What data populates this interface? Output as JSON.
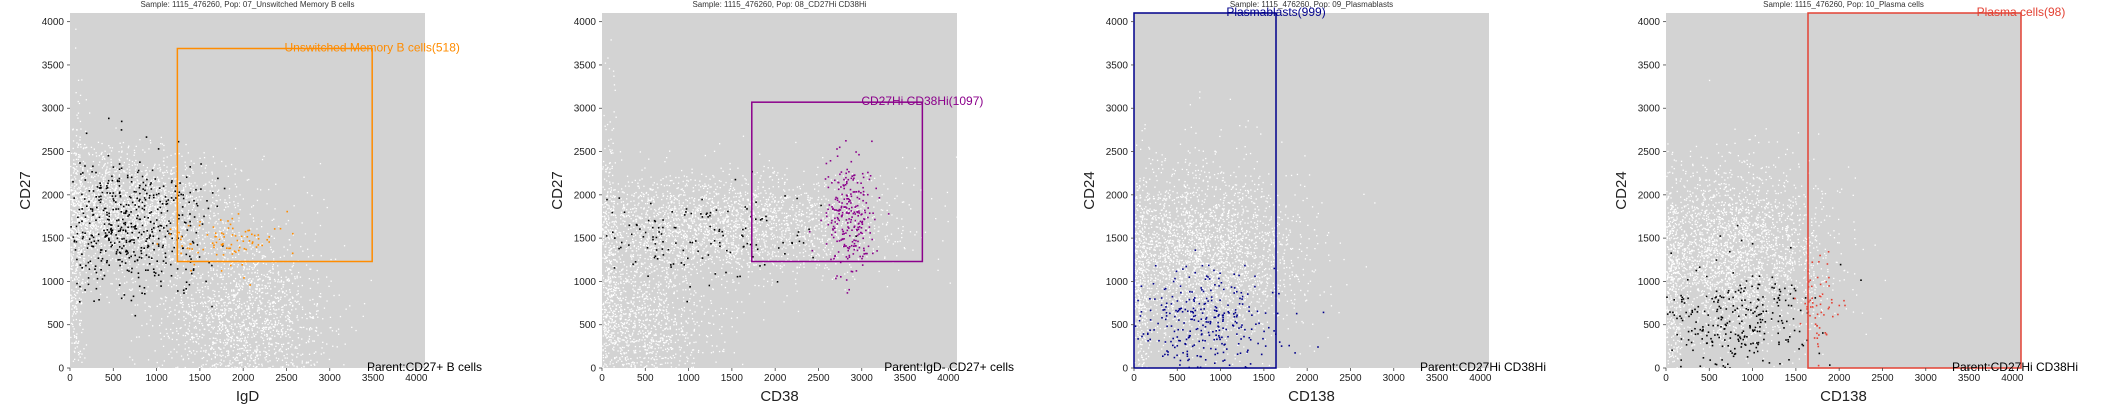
{
  "chart_data": [
    {
      "type": "scatter",
      "title": "Sample: 1115_476260, Pop: 07_Unswitched Memory B cells",
      "xlabel": "IgD",
      "ylabel": "CD27",
      "xlim": [
        0,
        4100
      ],
      "ylim": [
        0,
        4100
      ],
      "xticks": [
        "0",
        "500",
        "1000",
        "1500",
        "2000",
        "2500",
        "3000",
        "3500",
        "4000"
      ],
      "yticks": [
        "0",
        "500",
        "1000",
        "1500",
        "2000",
        "2500",
        "3000",
        "3500",
        "4000"
      ],
      "parent_label": "Parent:CD27+ B cells",
      "gate": {
        "label": "Unswitched Memory B cells(518)",
        "x": [
          1240,
          3490
        ],
        "y": [
          1230,
          3690
        ],
        "color": "#ff8c00"
      },
      "series": [
        {
          "role": "background",
          "color": "#ffffff",
          "clusters": [
            [
              500,
              1800,
              700,
              350,
              2600
            ],
            [
              2000,
              500,
              500,
              500,
              1800
            ],
            [
              60,
              1200,
              60,
              900,
              400
            ]
          ]
        },
        {
          "role": "parent",
          "color": "#000000",
          "clusters": [
            [
              650,
              1650,
              450,
              350,
              520
            ]
          ]
        },
        {
          "role": "gated",
          "color": "#ff8c00",
          "clusters": [
            [
              1750,
              1450,
              350,
              150,
              90
            ]
          ]
        }
      ],
      "grid": false
    },
    {
      "type": "scatter",
      "title": "Sample: 1115_476260, Pop: 08_CD27Hi CD38Hi",
      "xlabel": "CD38",
      "ylabel": "CD27",
      "xlim": [
        0,
        4100
      ],
      "ylim": [
        0,
        4100
      ],
      "xticks": [
        "0",
        "500",
        "1000",
        "1500",
        "2000",
        "2500",
        "3000",
        "3500",
        "4000"
      ],
      "yticks": [
        "0",
        "500",
        "1000",
        "1500",
        "2000",
        "2500",
        "3000",
        "3500",
        "4000"
      ],
      "parent_label": "Parent:IgD- CD27+ cells",
      "gate": {
        "label": "CD27Hi CD38Hi(1097)",
        "x": [
          1730,
          3700
        ],
        "y": [
          1230,
          3070
        ],
        "color": "#8b008b"
      },
      "series": [
        {
          "role": "background",
          "color": "#ffffff",
          "clusters": [
            [
              1300,
              1650,
              1000,
              300,
              2600
            ],
            [
              400,
              500,
              450,
              450,
              1400
            ],
            [
              60,
              1200,
              60,
              900,
              400
            ]
          ]
        },
        {
          "role": "parent",
          "color": "#000000",
          "clusters": [
            [
              900,
              1550,
              800,
              250,
              160
            ]
          ]
        },
        {
          "role": "gated",
          "color": "#8b008b",
          "clusters": [
            [
              2850,
              1750,
              150,
              350,
              260
            ]
          ]
        }
      ],
      "grid": false
    },
    {
      "type": "scatter",
      "title": "Sample: 1115_476260, Pop: 09_Plasmablasts",
      "xlabel": "CD138",
      "ylabel": "CD24",
      "xlim": [
        0,
        4100
      ],
      "ylim": [
        0,
        4100
      ],
      "xticks": [
        "0",
        "500",
        "1000",
        "1500",
        "2000",
        "2500",
        "3000",
        "3500",
        "4000"
      ],
      "yticks": [
        "0",
        "500",
        "1000",
        "1500",
        "2000",
        "2500",
        "3000",
        "3500",
        "4000"
      ],
      "parent_label": "Parent:CD27Hi CD38Hi",
      "gate": {
        "label": "Plasmablasts(999)",
        "x": [
          0,
          1640
        ],
        "y": [
          0,
          4100
        ],
        "color": "#00008b"
      },
      "series": [
        {
          "role": "background",
          "color": "#ffffff",
          "clusters": [
            [
              750,
              1300,
              550,
              500,
              2800
            ],
            [
              60,
              900,
              60,
              700,
              400
            ]
          ]
        },
        {
          "role": "gated",
          "color": "#00008b",
          "clusters": [
            [
              750,
              550,
              450,
              300,
              320
            ]
          ]
        }
      ],
      "grid": false
    },
    {
      "type": "scatter",
      "title": "Sample: 1115_476260, Pop: 10_Plasma cells",
      "xlabel": "CD138",
      "ylabel": "CD24",
      "xlim": [
        0,
        4100
      ],
      "ylim": [
        0,
        4100
      ],
      "xticks": [
        "0",
        "500",
        "1000",
        "1500",
        "2000",
        "2500",
        "3000",
        "3500",
        "4000"
      ],
      "yticks": [
        "0",
        "500",
        "1000",
        "1500",
        "2000",
        "2500",
        "3000",
        "3500",
        "4000"
      ],
      "parent_label": "Parent:CD27Hi CD38Hi",
      "gate": {
        "label": "Plasma cells(98)",
        "x": [
          1640,
          4100
        ],
        "y": [
          0,
          4100
        ],
        "color": "#e34234"
      },
      "series": [
        {
          "role": "background",
          "color": "#ffffff",
          "clusters": [
            [
              750,
              1300,
              550,
              500,
              2800
            ],
            [
              60,
              900,
              60,
              700,
              400
            ]
          ]
        },
        {
          "role": "parent",
          "color": "#000000",
          "clusters": [
            [
              750,
              600,
              450,
              320,
              300
            ]
          ]
        },
        {
          "role": "gated",
          "color": "#e34234",
          "clusters": [
            [
              1750,
              750,
              120,
              250,
              60
            ]
          ]
        }
      ],
      "grid": false
    }
  ],
  "style": {
    "plot_background": "#d3d3d3",
    "text": "#222222"
  }
}
